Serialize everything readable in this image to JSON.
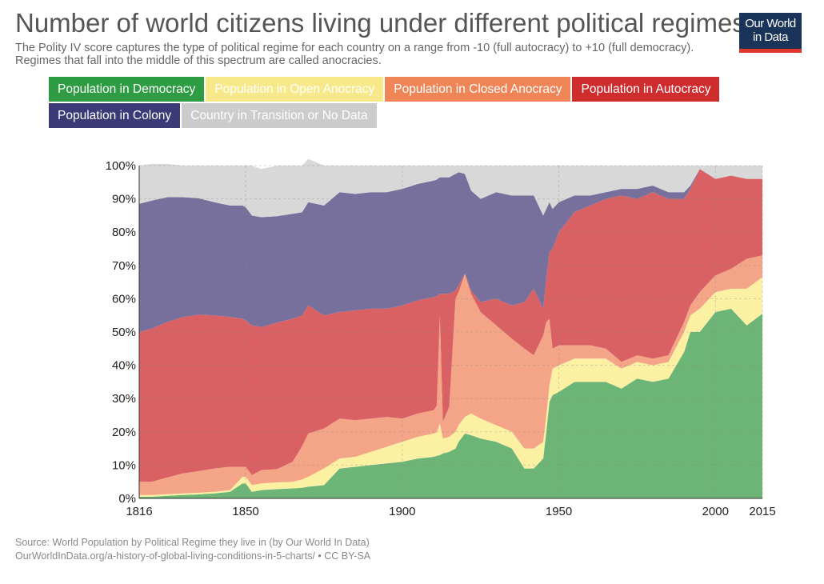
{
  "header": {
    "title": "Number of world citizens living under different political regimes",
    "subtitle": "The Polity IV score captures the type of political regime for each country on a range from -10 (full autocracy) to +10 (full democracy). Regimes that fall into the middle of this spectrum are called anocracies."
  },
  "logo": {
    "line1": "Our World",
    "line2": "in Data",
    "bg": "#1a3358",
    "accent": "#e0382f"
  },
  "legend": [
    {
      "label": "Population in Democracy",
      "color": "#2e9c42"
    },
    {
      "label": "Population in Open Anocracy",
      "color": "#f7e98a"
    },
    {
      "label": "Population in Closed Anocracy",
      "color": "#ef8456"
    },
    {
      "label": "Population in Autocracy",
      "color": "#cf2c2e"
    },
    {
      "label": "Population in Colony",
      "color": "#3c3977"
    },
    {
      "label": "Country in Transition or No Data",
      "color": "#cccccc"
    }
  ],
  "footer": {
    "source": "Source: World Population by Political Regime they live in (by Our World In Data)",
    "url": "OurWorldInData.org/a-history-of-global-living-conditions-in-5-charts/ • CC BY-SA"
  },
  "chart_data": {
    "type": "area",
    "stacked": true,
    "ylim": [
      0,
      100
    ],
    "xlim": [
      1816,
      2015
    ],
    "yticks": [
      "0%",
      "10%",
      "20%",
      "30%",
      "40%",
      "50%",
      "60%",
      "70%",
      "80%",
      "90%",
      "100%"
    ],
    "xticks": [
      "1816",
      "1850",
      "1900",
      "1950",
      "2000",
      "2015"
    ],
    "grid": true,
    "x": [
      1816,
      1820,
      1825,
      1830,
      1835,
      1840,
      1845,
      1849,
      1850,
      1852,
      1855,
      1860,
      1865,
      1868,
      1870,
      1875,
      1880,
      1885,
      1890,
      1895,
      1900,
      1905,
      1910,
      1911,
      1912,
      1913,
      1915,
      1917,
      1918,
      1920,
      1922,
      1925,
      1930,
      1935,
      1939,
      1942,
      1945,
      1946,
      1947,
      1948,
      1950,
      1955,
      1960,
      1965,
      1970,
      1975,
      1980,
      1985,
      1990,
      1992,
      1995,
      2000,
      2005,
      2010,
      2015
    ],
    "series": [
      {
        "name": "Population in Democracy",
        "color": "#6cb576",
        "values": [
          0.5,
          0.5,
          0.8,
          1,
          1.2,
          1.5,
          2,
          4.5,
          4.5,
          2,
          2.5,
          2.8,
          3,
          3.2,
          3.5,
          4,
          9,
          9.5,
          10,
          10.5,
          11,
          12,
          12.5,
          12.8,
          13,
          13.5,
          14,
          15,
          17,
          19.5,
          19,
          18,
          17,
          15,
          9,
          9,
          12,
          20,
          29,
          31,
          32,
          35,
          35,
          35,
          33,
          36,
          35,
          36,
          44,
          50,
          50,
          56,
          57,
          52,
          55.5
        ]
      },
      {
        "name": "Population in Open Anocracy",
        "color": "#fcf0a3",
        "values": [
          0.5,
          0.5,
          0.5,
          0.5,
          0.5,
          0.5,
          0.5,
          2,
          2,
          2,
          2,
          2,
          2,
          2.5,
          3,
          5,
          3,
          3,
          4,
          5,
          6,
          6.5,
          7,
          7,
          9.5,
          4.5,
          4.5,
          5,
          5,
          5,
          6.5,
          6,
          5,
          5,
          6,
          6,
          5,
          5,
          5,
          8,
          8,
          7,
          7,
          7,
          6,
          5,
          5,
          5,
          6,
          5,
          7,
          6,
          6,
          11,
          11
        ]
      },
      {
        "name": "Population in Closed Anocracy",
        "color": "#f4a588",
        "values": [
          4,
          4,
          5,
          6,
          6.5,
          7,
          7,
          3,
          3,
          3,
          4,
          4,
          6,
          10,
          13,
          12,
          12,
          11,
          10,
          9,
          7,
          7,
          7,
          8,
          32.5,
          5,
          9,
          40,
          40,
          43,
          36,
          32,
          30,
          28,
          30,
          28,
          32,
          28,
          20,
          6,
          6,
          4,
          4,
          3,
          2,
          2,
          2,
          2,
          3,
          3,
          5,
          5,
          6,
          9,
          6.5
        ]
      },
      {
        "name": "Population in Autocracy",
        "color": "#d96164",
        "values": [
          45,
          46,
          46.7,
          47,
          47,
          46,
          45,
          44.5,
          44,
          45,
          43,
          44,
          43,
          39.3,
          38.5,
          34,
          32,
          33,
          33,
          32.5,
          34,
          34,
          34,
          33,
          6.5,
          38.5,
          34,
          2.5,
          2,
          0,
          1,
          3,
          8,
          10,
          14,
          20,
          8,
          13,
          20,
          30,
          34,
          40,
          42,
          45,
          50,
          47,
          50,
          47,
          37,
          35,
          37,
          29,
          28,
          24,
          23
        ]
      },
      {
        "name": "Population in Colony",
        "color": "#77709c",
        "values": [
          38.5,
          38.5,
          37.5,
          36,
          35,
          34,
          33.5,
          34,
          34,
          33,
          33,
          32,
          31.5,
          31,
          31,
          33,
          36,
          35,
          35,
          35,
          35,
          35,
          35,
          35,
          35,
          35,
          35,
          35,
          34,
          30,
          30,
          31,
          32,
          33,
          32,
          28,
          28,
          21,
          15,
          12,
          9,
          5,
          3,
          2,
          2,
          3,
          2,
          2,
          2,
          1,
          0,
          0,
          0,
          0,
          0
        ]
      },
      {
        "name": "Country in Transition or No Data",
        "color": "#d8d8d8",
        "values": [
          11.5,
          11,
          10,
          9.5,
          9.8,
          11,
          12,
          12,
          12.5,
          15,
          14.5,
          15.2,
          14.5,
          14,
          13,
          12,
          8,
          8.5,
          8,
          8,
          7,
          5.5,
          4.5,
          4.2,
          3.5,
          3.5,
          3.5,
          2.5,
          2,
          2.5,
          7.5,
          10,
          8,
          9,
          9,
          9,
          15,
          13,
          11,
          13,
          11,
          9,
          9,
          8,
          7,
          7,
          6,
          8,
          8,
          6,
          1,
          4,
          3,
          4,
          4
        ]
      }
    ]
  }
}
